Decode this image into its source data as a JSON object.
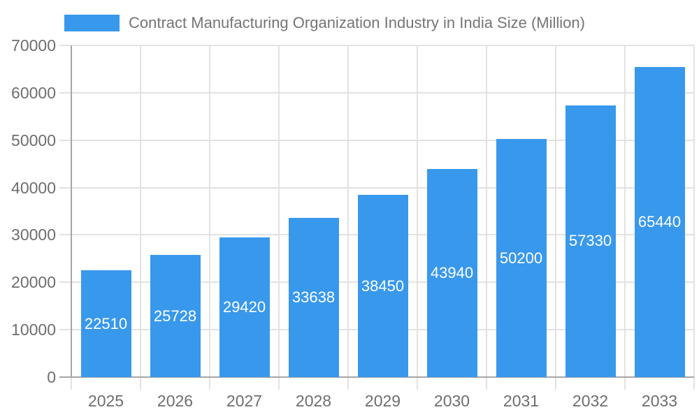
{
  "legend": {
    "series_label": "Contract Manufacturing Organization Industry in India Size (Million)"
  },
  "colors": {
    "bar": "#3898ec",
    "gridline": "#e2e2e2",
    "axis": "#a6a6a6",
    "tick_label": "#6e6e6e",
    "legend_text": "#757575",
    "bar_label": "#ffffff"
  },
  "chart_data": {
    "type": "bar",
    "title": "Contract Manufacturing Organization Industry in India Size (Million)",
    "categories": [
      "2025",
      "2026",
      "2027",
      "2028",
      "2029",
      "2030",
      "2031",
      "2032",
      "2033"
    ],
    "values": [
      22510,
      25728,
      29420,
      33638,
      38450,
      43940,
      50200,
      57330,
      65440
    ],
    "value_labels": [
      "22510",
      "25728",
      "29420",
      "33638",
      "38450",
      "43940",
      "50200",
      "57330",
      "65440"
    ],
    "xlabel": "",
    "ylabel": "",
    "ylim": [
      0,
      70000
    ],
    "yticks": [
      0,
      10000,
      20000,
      30000,
      40000,
      50000,
      60000,
      70000
    ],
    "ytick_labels": [
      "0",
      "10000",
      "20000",
      "30000",
      "40000",
      "50000",
      "60000",
      "70000"
    ],
    "grid": "on",
    "legend_position": "top",
    "bar_label_position": "center-inside"
  }
}
